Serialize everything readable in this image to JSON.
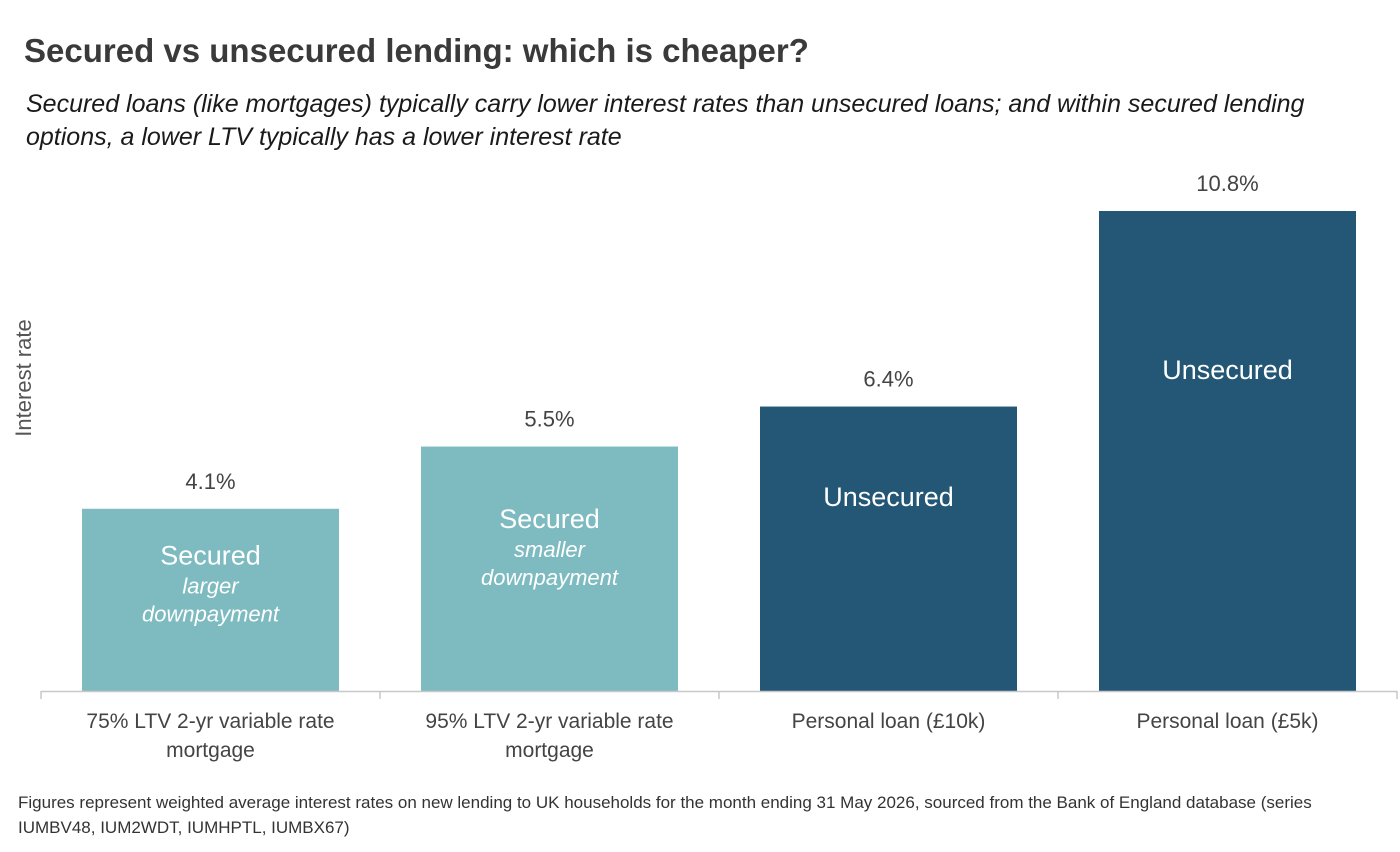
{
  "chart_data": {
    "type": "bar",
    "title": "Secured vs unsecured lending: which is cheaper?",
    "subtitle": "Secured loans (like mortgages) typically carry lower interest rates than unsecured loans; and within secured lending options, a lower LTV typically has a lower interest rate",
    "xlabel": "",
    "ylabel": "Interest rate",
    "ylim": [
      0,
      10.8
    ],
    "grid": false,
    "categories": [
      [
        "75% LTV 2-yr variable rate",
        "mortgage"
      ],
      [
        "95% LTV 2-yr variable rate",
        "mortgage"
      ],
      [
        "Personal loan (£10k)"
      ],
      [
        "Personal loan (£5k)"
      ]
    ],
    "values": [
      4.1,
      5.5,
      6.4,
      10.8
    ],
    "value_labels": [
      "4.1%",
      "5.5%",
      "6.4%",
      "10.8%"
    ],
    "bar_labels": [
      {
        "main": "Secured",
        "sub": [
          "larger",
          "downpayment"
        ]
      },
      {
        "main": "Secured",
        "sub": [
          "smaller",
          "downpayment"
        ]
      },
      {
        "main": "Unsecured",
        "sub": []
      },
      {
        "main": "Unsecured",
        "sub": []
      }
    ],
    "bar_colors": [
      "#7dbbc0",
      "#7dbbc0",
      "#235775",
      "#235775"
    ],
    "axis_color": "#c8c8c8"
  },
  "footnote": "Figures represent weighted average interest rates on new lending to UK households for the month ending 31 May 2026, sourced from the Bank of England database (series IUMBV48, IUM2WDT, IUMHPTL, IUMBX67)"
}
